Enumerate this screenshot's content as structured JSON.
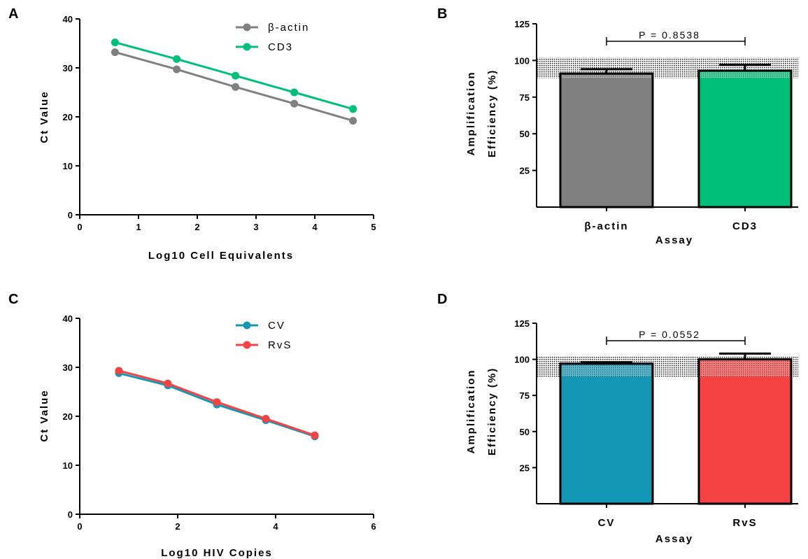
{
  "panels": {
    "A": {
      "letter": "A"
    },
    "B": {
      "letter": "B"
    },
    "C": {
      "letter": "C"
    },
    "D": {
      "letter": "D"
    }
  },
  "colors": {
    "gray": "#808080",
    "green": "#00bf78",
    "teal": "#1497b5",
    "red": "#f54242",
    "axis": "#000000"
  },
  "chart_data": [
    {
      "id": "A",
      "type": "line",
      "xlabel": "Log10 Cell Equivalents",
      "ylabel": "Ct  Value",
      "xlim": [
        0,
        5
      ],
      "ylim": [
        0,
        40
      ],
      "xticks": [
        0,
        1,
        2,
        3,
        4,
        5
      ],
      "yticks": [
        0,
        10,
        20,
        30,
        40
      ],
      "legend_position": "top-right",
      "series": [
        {
          "name": "β-actin",
          "color": "#808080",
          "x": [
            0.6,
            1.65,
            2.65,
            3.65,
            4.65
          ],
          "y": [
            33.2,
            29.7,
            26.1,
            22.7,
            19.2
          ]
        },
        {
          "name": "CD3",
          "color": "#00bf78",
          "x": [
            0.6,
            1.65,
            2.65,
            3.65,
            4.65
          ],
          "y": [
            35.2,
            31.8,
            28.4,
            25.0,
            21.6
          ]
        }
      ]
    },
    {
      "id": "B",
      "type": "bar",
      "xlabel": "Assay",
      "ylabel_line1": "Amplification",
      "ylabel_line2": "Efficiency (%)",
      "ylim": [
        0,
        125
      ],
      "yticks": [
        25,
        50,
        75,
        100,
        125
      ],
      "shaded_band": [
        88,
        102
      ],
      "categories": [
        "β-actin",
        "CD3"
      ],
      "values": [
        91,
        93
      ],
      "errors": [
        3,
        4
      ],
      "colors": [
        "#808080",
        "#00bf78"
      ],
      "p_value": "P = 0.8538"
    },
    {
      "id": "C",
      "type": "line",
      "xlabel": "Log10 HIV Copies",
      "ylabel": "Ct  Value",
      "xlim": [
        0,
        6
      ],
      "ylim": [
        0,
        40
      ],
      "xticks": [
        0,
        2,
        4,
        6
      ],
      "yticks": [
        0,
        10,
        20,
        30,
        40
      ],
      "legend_position": "top-right",
      "series": [
        {
          "name": "CV",
          "color": "#1497b5",
          "x": [
            0.8,
            1.8,
            2.8,
            3.8,
            4.8
          ],
          "y": [
            28.8,
            26.3,
            22.4,
            19.2,
            15.9
          ]
        },
        {
          "name": "RvS",
          "color": "#f54242",
          "x": [
            0.8,
            1.8,
            2.8,
            3.8,
            4.8
          ],
          "y": [
            29.3,
            26.7,
            22.9,
            19.5,
            16.1
          ]
        }
      ]
    },
    {
      "id": "D",
      "type": "bar",
      "xlabel": "Assay",
      "ylabel_line1": "Amplification",
      "ylabel_line2": "Efficiency (%)",
      "ylim": [
        0,
        125
      ],
      "yticks": [
        25,
        50,
        75,
        100,
        125
      ],
      "shaded_band": [
        88,
        102
      ],
      "categories": [
        "CV",
        "RvS"
      ],
      "values": [
        97,
        100
      ],
      "errors": [
        1,
        4
      ],
      "colors": [
        "#1497b5",
        "#f54242"
      ],
      "p_value": "P = 0.0552"
    }
  ]
}
